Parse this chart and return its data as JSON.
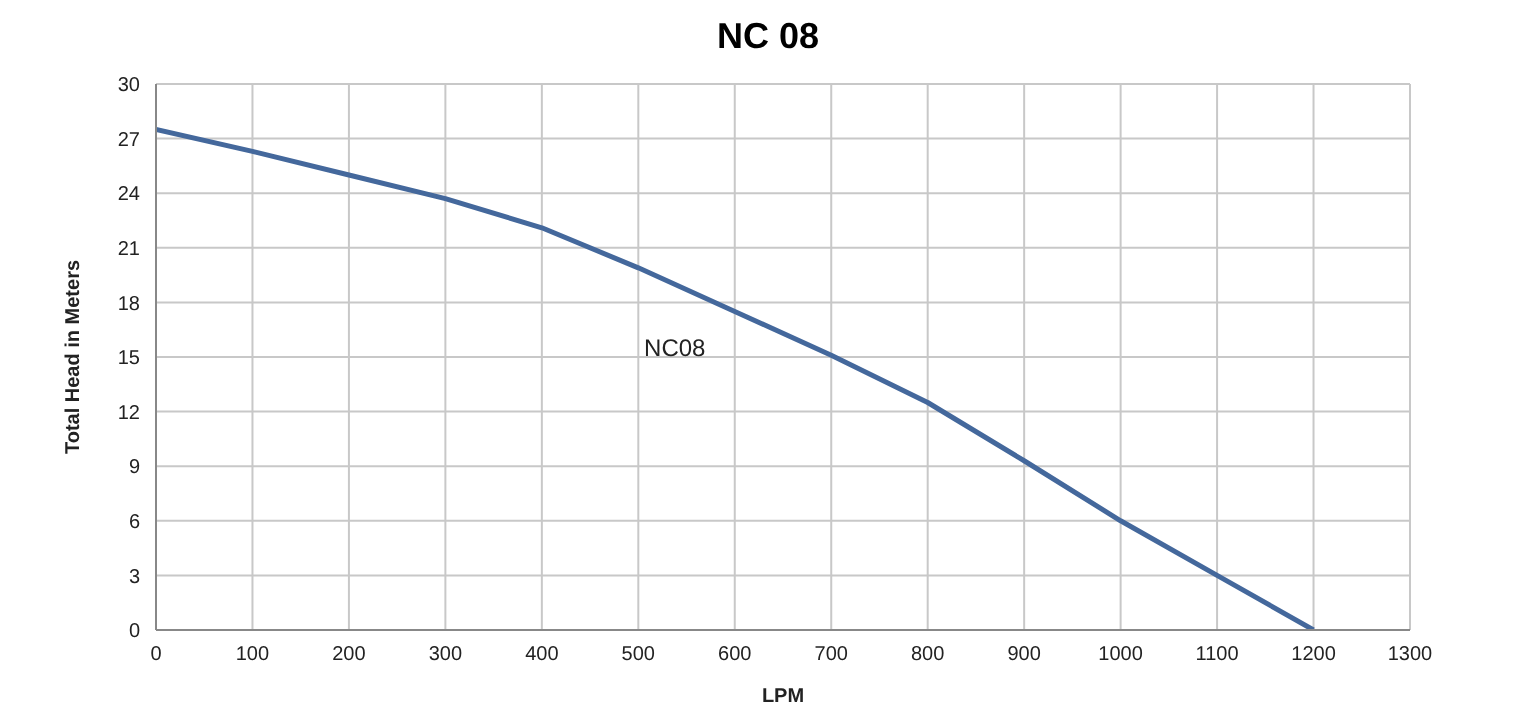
{
  "chart_data": {
    "type": "line",
    "title": "NC 08",
    "xlabel": "LPM",
    "ylabel": "Total Head  in Meters",
    "x": [
      0,
      100,
      200,
      300,
      400,
      500,
      600,
      700,
      800,
      900,
      1000,
      1100,
      1200
    ],
    "series": [
      {
        "name": "NC08",
        "color": "#44689c",
        "values": [
          27.5,
          26.3,
          25,
          23.7,
          22.1,
          19.9,
          17.5,
          15.1,
          12.5,
          9.3,
          6,
          3,
          0
        ]
      }
    ],
    "xlim": [
      0,
      1300
    ],
    "xticks": [
      0,
      100,
      200,
      300,
      400,
      500,
      600,
      700,
      800,
      900,
      1000,
      1100,
      1200,
      1300
    ],
    "ylim": [
      0,
      30
    ],
    "yticks": [
      0,
      3,
      6,
      9,
      12,
      15,
      18,
      21,
      24,
      27,
      30
    ],
    "grid": true,
    "legend": false,
    "marker": "none",
    "line_style": "solid"
  }
}
